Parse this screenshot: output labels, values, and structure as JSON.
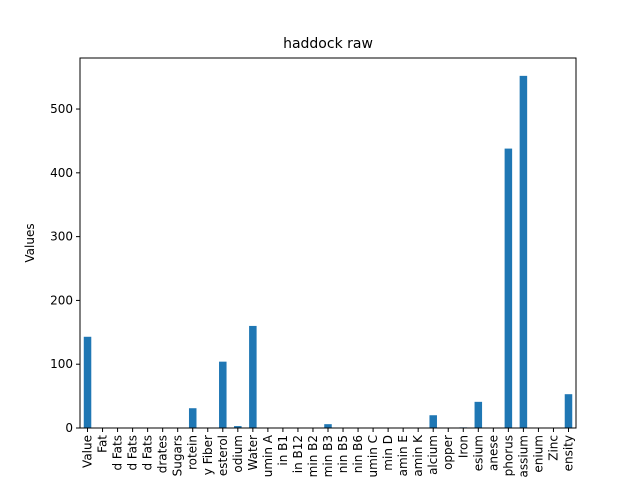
{
  "chart_data": {
    "type": "bar",
    "title": "haddock raw",
    "xlabel": "",
    "ylabel": "Values",
    "ylim": [
      0,
      580
    ],
    "yticks": [
      0,
      100,
      200,
      300,
      400,
      500
    ],
    "grid": false,
    "legend": "none",
    "categories": [
      "Value",
      "Fat",
      "d Fats",
      "d Fats",
      "d Fats",
      "drates",
      "Sugars",
      "rotein",
      "y Fiber",
      "esterol",
      "odium",
      "Water",
      "umin A",
      "in B1",
      "in B12",
      "min B2",
      "min B3",
      "nin B5",
      "nin B6",
      "umin C",
      "min D",
      "amin E",
      "amin K",
      "alcium",
      "opper",
      "Iron",
      "esium",
      "anese",
      "phorus",
      "assium",
      "enium",
      "Zinc",
      "ensity"
    ],
    "series": [
      {
        "values": [
          143,
          0.4,
          0.1,
          0.1,
          0.1,
          0,
          0,
          31,
          0,
          104,
          3,
          160,
          0,
          0,
          0,
          0,
          6,
          0,
          0,
          0,
          0,
          0,
          0,
          20,
          0,
          1,
          41,
          0,
          438,
          552,
          0,
          0,
          53
        ]
      }
    ],
    "bar_color": "#1f77b4"
  }
}
